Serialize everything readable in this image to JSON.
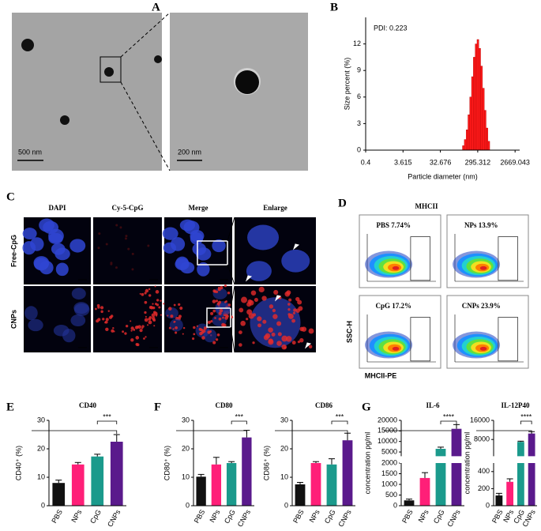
{
  "panel_labels": [
    "A",
    "B",
    "C",
    "D",
    "E",
    "F",
    "G"
  ],
  "tem": {
    "scale_bars": [
      "500 nm",
      "200 nm"
    ]
  },
  "microscopy": {
    "columns": [
      "DAPI",
      "Cy-5-CpG",
      "Merge",
      "Enlarge"
    ],
    "rows": [
      "Free-CpG",
      "CNPs"
    ]
  },
  "flow": {
    "title": "MHCII",
    "plots": [
      "PBS 7.74%",
      "NPs 13.9%",
      "CpG 17.2%",
      "CNPs 23.9%"
    ],
    "y_label": "SSC-H",
    "x_label": "MHCII-PE"
  },
  "chart_data": [
    {
      "type": "histogram",
      "annotation": "PDI: 0.223",
      "ylabel": "Size percent (%)",
      "xlabel": "Particle diameter (nm)",
      "bins": [
        120,
        134,
        149,
        166,
        184,
        205,
        228,
        254,
        283,
        315,
        350,
        390,
        434,
        483,
        538,
        598
      ],
      "values": [
        0.5,
        1.2,
        2.3,
        4,
        6,
        8.3,
        10.5,
        12,
        12.5,
        11.5,
        9.5,
        7,
        4.5,
        2.5,
        1
      ],
      "color": "#ff1a1a",
      "xscale": "log",
      "xlim": [
        0.4,
        3500
      ],
      "xticks": [
        0.4,
        3.615,
        32.676,
        295.312,
        2669.043
      ],
      "ylim": [
        0,
        15
      ],
      "yticks": [
        0,
        3,
        6,
        9,
        12
      ]
    },
    {
      "type": "bar",
      "title": "CD40",
      "ylabel": "CD40⁺ (%)",
      "categories": [
        "PBS",
        "NPs",
        "CpG",
        "CNPs"
      ],
      "colors": [
        "#111111",
        "#ff1f78",
        "#1b9a8c",
        "#5a1a8c"
      ],
      "values": [
        8,
        14.5,
        17.3,
        22.5
      ],
      "errors": [
        1,
        0.7,
        0.8,
        2.5
      ],
      "ylim": [
        0,
        30
      ],
      "yticks": [
        0,
        10,
        20,
        30
      ],
      "significance": "***"
    },
    {
      "type": "bar",
      "title": "CD80",
      "ylabel": "CD80⁺ (%)",
      "categories": [
        "PBS",
        "NPs",
        "CpG",
        "CNPs"
      ],
      "colors": [
        "#111111",
        "#ff1f78",
        "#1b9a8c",
        "#5a1a8c"
      ],
      "values": [
        10.2,
        14.5,
        15,
        24
      ],
      "errors": [
        0.8,
        2.5,
        0.5,
        2.5
      ],
      "ylim": [
        0,
        30
      ],
      "yticks": [
        0,
        10,
        20,
        30
      ],
      "significance": "***"
    },
    {
      "type": "bar",
      "title": "CD86",
      "ylabel": "CD86⁺ (%)",
      "categories": [
        "PBS",
        "NPs",
        "CpG",
        "CNPs"
      ],
      "colors": [
        "#111111",
        "#ff1f78",
        "#1b9a8c",
        "#5a1a8c"
      ],
      "values": [
        7.5,
        15,
        14.5,
        23
      ],
      "errors": [
        0.7,
        0.5,
        2,
        2.5
      ],
      "ylim": [
        0,
        30
      ],
      "yticks": [
        0,
        10,
        20,
        30
      ],
      "significance": "***"
    },
    {
      "type": "bar",
      "title": "IL-6",
      "ylabel": "concentration pg/ml",
      "categories": [
        "PBS",
        "NPs",
        "CpG",
        "CNPs"
      ],
      "colors": [
        "#111111",
        "#ff1f78",
        "#1b9a8c",
        "#5a1a8c"
      ],
      "values": [
        250,
        1300,
        6500,
        16000
      ],
      "errors": [
        60,
        250,
        800,
        2000
      ],
      "segments": [
        {
          "ylim": [
            0,
            2000
          ],
          "yticks": [
            0,
            500,
            1000,
            1500,
            2000
          ]
        },
        {
          "ylim": [
            3000,
            20000
          ],
          "yticks": [
            5000,
            10000,
            15000,
            20000
          ]
        }
      ],
      "significance": "****"
    },
    {
      "type": "bar",
      "title": "IL-12P40",
      "ylabel": "concentration pg/ml",
      "categories": [
        "PBS",
        "NPs",
        "CpG",
        "CNPs"
      ],
      "colors": [
        "#111111",
        "#ff1f78",
        "#1b9a8c",
        "#5a1a8c"
      ],
      "values": [
        120,
        280,
        7000,
        10500
      ],
      "errors": [
        25,
        35,
        300,
        800
      ],
      "segments": [
        {
          "ylim": [
            0,
            500
          ],
          "yticks": [
            0,
            200,
            400
          ]
        },
        {
          "ylim": [
            1000,
            16000
          ],
          "yticks": [
            8000,
            16000
          ]
        }
      ],
      "significance": "****"
    }
  ]
}
